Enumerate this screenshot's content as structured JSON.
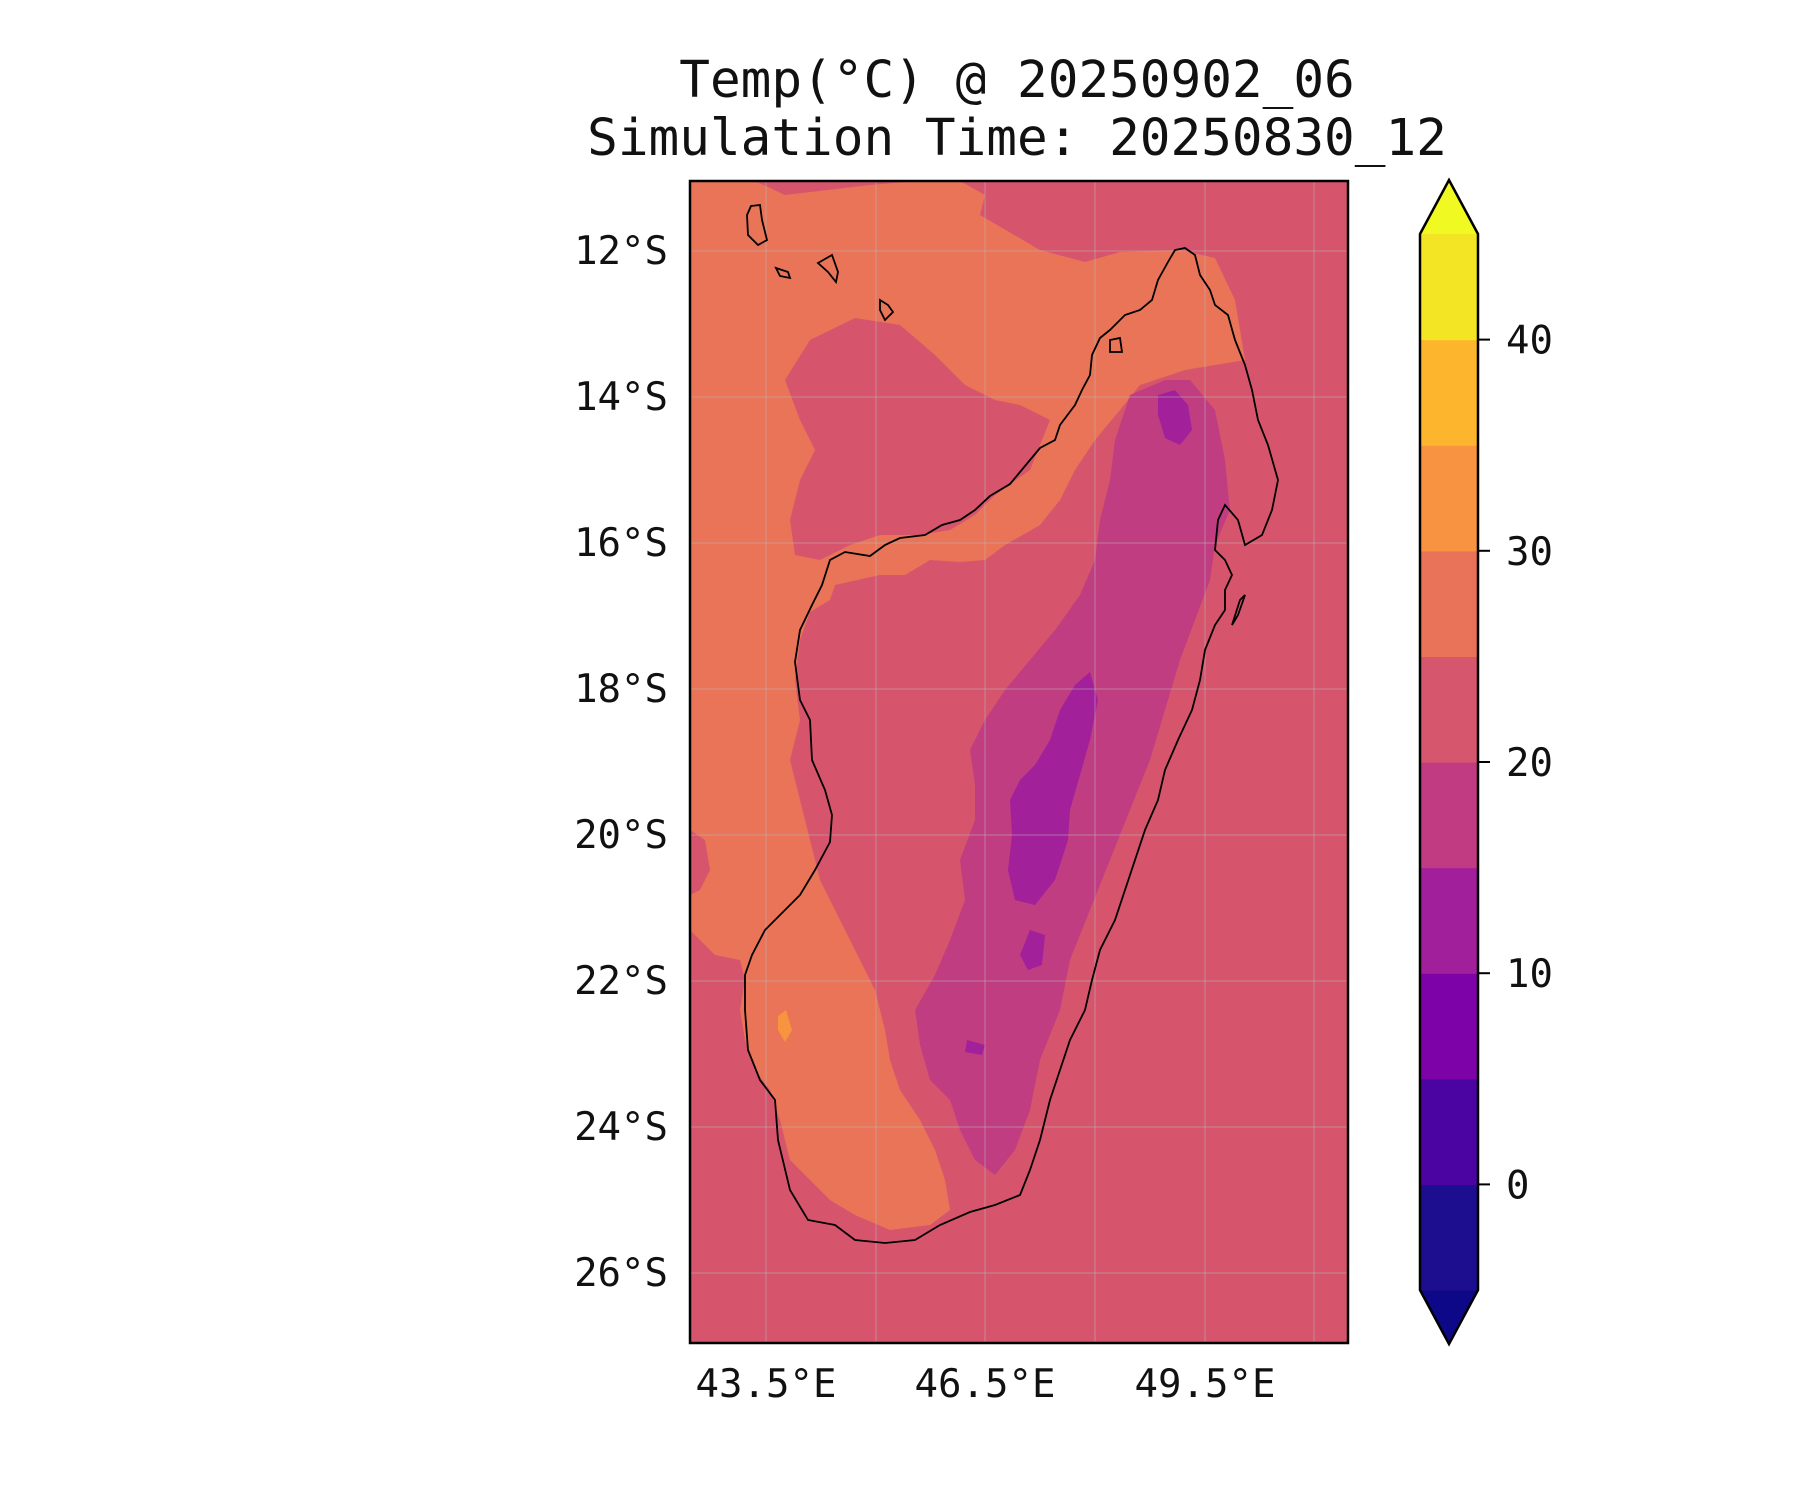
{
  "figure": {
    "title": "Temp(°C) @ 20250902_06",
    "subtitle": "Simulation Time: 20250830_12"
  },
  "map": {
    "type": "filled-contour-map",
    "variable": "Temp(°C)",
    "lon_range": [
      42.1,
      51.1
    ],
    "lat_range": [
      -27.0,
      -11.1
    ],
    "lat_ticks": [
      {
        "value": -12,
        "label": "12°S"
      },
      {
        "value": -14,
        "label": "14°S"
      },
      {
        "value": -16,
        "label": "16°S"
      },
      {
        "value": -18,
        "label": "18°S"
      },
      {
        "value": -20,
        "label": "20°S"
      },
      {
        "value": -22,
        "label": "22°S"
      },
      {
        "value": -24,
        "label": "24°S"
      },
      {
        "value": -26,
        "label": "26°S"
      }
    ],
    "lon_ticks": [
      {
        "value": 43.5,
        "label": "43.5°E"
      },
      {
        "value": 46.5,
        "label": "46.5°E"
      },
      {
        "value": 49.5,
        "label": "49.5°E"
      }
    ],
    "gridlines": true,
    "ocean_value_band": "20–25",
    "colors": {
      "band_20_25": "#d6556d",
      "band_25_30": "#e97458",
      "band_15_20": "#c13d81",
      "band_10_15": "#a2219a",
      "band_5_10": "#8409a6",
      "band_30_35": "#f89440",
      "coastline": "#000000"
    }
  },
  "colorbar": {
    "levels": [
      -5,
      0,
      5,
      10,
      15,
      20,
      25,
      30,
      35,
      40,
      45
    ],
    "colors": [
      "#1d0e8f",
      "#4b03a1",
      "#7d03a8",
      "#a21f9b",
      "#c13b82",
      "#d6566d",
      "#e97359",
      "#f89441",
      "#fdb52e",
      "#f3e424"
    ],
    "under_color": "#0d0887",
    "over_color": "#f0f921",
    "extend": "both",
    "ticks": [
      {
        "value": 0,
        "label": "0"
      },
      {
        "value": 10,
        "label": "10"
      },
      {
        "value": 20,
        "label": "20"
      },
      {
        "value": 30,
        "label": "30"
      },
      {
        "value": 40,
        "label": "40"
      }
    ]
  }
}
